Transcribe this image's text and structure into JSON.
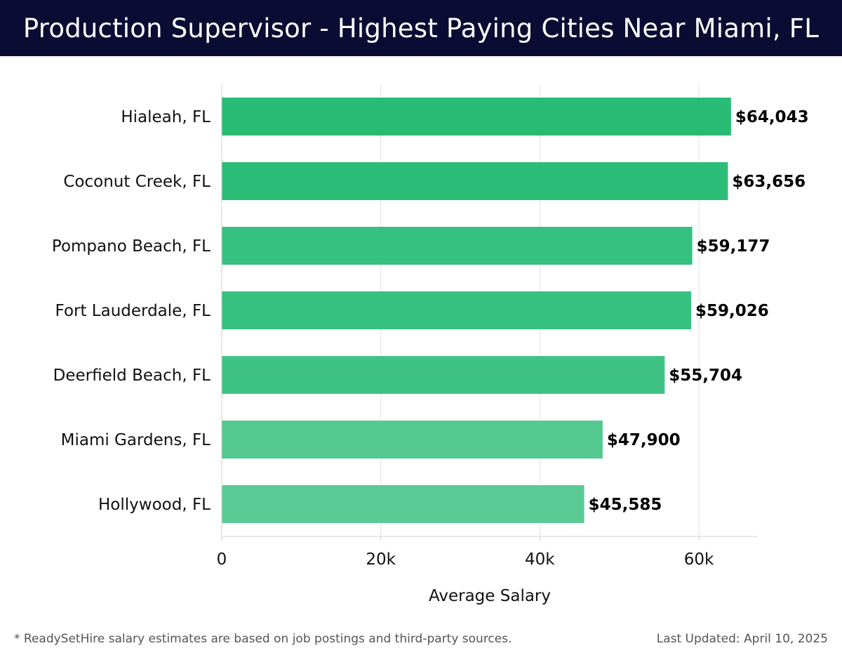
{
  "header": {
    "title": "Production Supervisor - Highest Paying Cities Near Miami, FL"
  },
  "chart_data": {
    "type": "bar",
    "orientation": "horizontal",
    "title": "Production Supervisor - Highest Paying Cities Near Miami, FL",
    "categories": [
      "Hialeah, FL",
      "Coconut Creek, FL",
      "Pompano Beach, FL",
      "Fort Lauderdale, FL",
      "Deerfield Beach, FL",
      "Miami Gardens, FL",
      "Hollywood, FL"
    ],
    "values": [
      64043,
      63656,
      59177,
      59026,
      55704,
      47900,
      45585
    ],
    "value_labels": [
      "$64,043",
      "$63,656",
      "$59,177",
      "$59,026",
      "$55,704",
      "$47,900",
      "$45,585"
    ],
    "xlabel": "Average Salary",
    "ylabel": "",
    "xlim": [
      0,
      67500
    ],
    "xticks": [
      0,
      20000,
      40000,
      60000
    ],
    "xtick_labels": [
      "0",
      "20k",
      "40k",
      "60k"
    ],
    "grid": true,
    "bar_colors": [
      "#28bb74",
      "#2bbd77",
      "#37c181",
      "#37c181",
      "#3fc385",
      "#53c990",
      "#5acb94"
    ]
  },
  "footer": {
    "note": "* ReadySetHire salary estimates are based on job postings and third-party sources.",
    "updated": "Last Updated: April 10, 2025"
  }
}
